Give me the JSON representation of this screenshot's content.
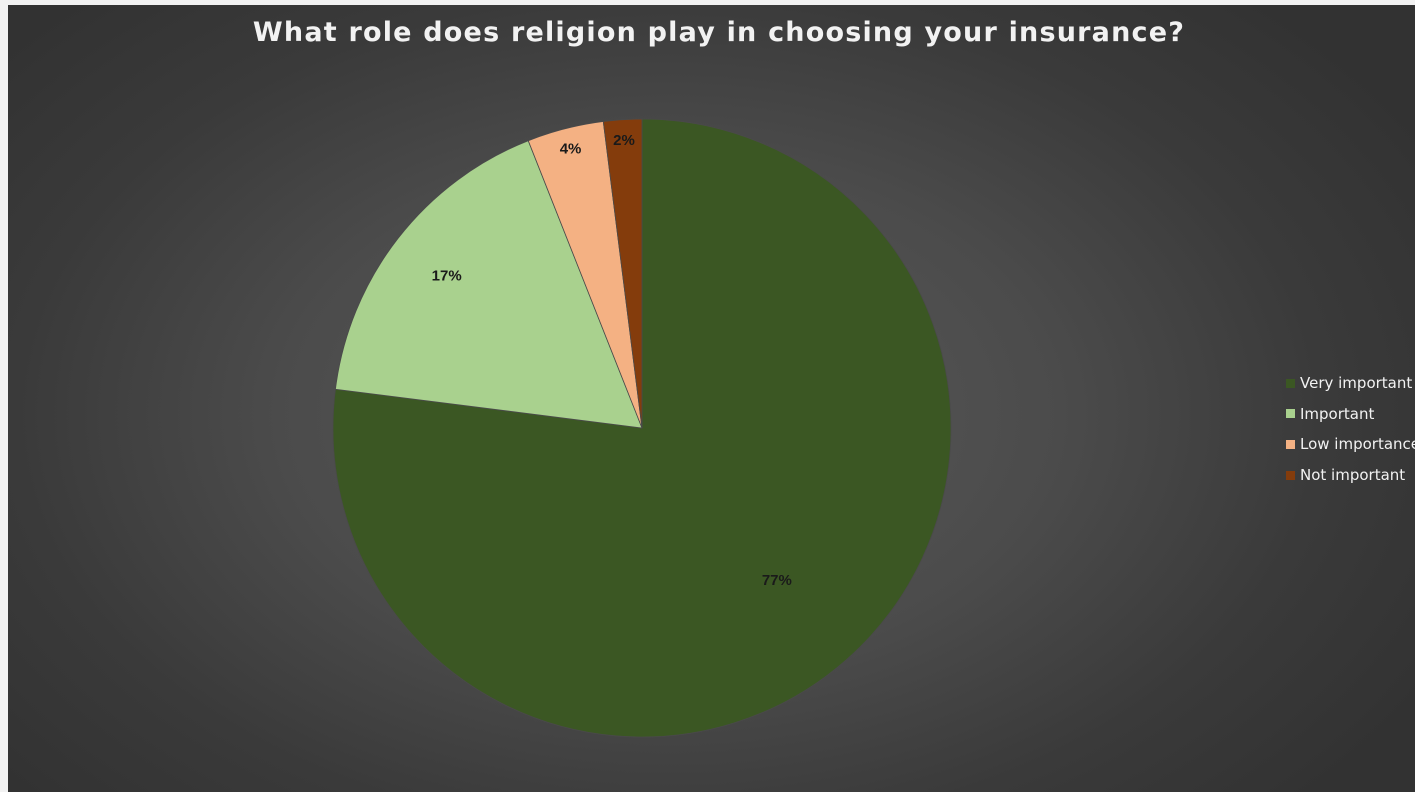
{
  "chart_data": {
    "type": "pie",
    "title": "What role does religion play in choosing your insurance?",
    "categories": [
      "Very important",
      "Important",
      "Low importance",
      "Not important"
    ],
    "values": [
      77,
      17,
      4,
      2
    ],
    "data_labels": [
      "77%",
      "17%",
      "4%",
      "2%"
    ],
    "colors": [
      "#3b5723",
      "#a9d18e",
      "#f4b183",
      "#843c0c"
    ],
    "legend_position": "right",
    "start_angle": "12 o'clock",
    "direction": "clockwise"
  }
}
